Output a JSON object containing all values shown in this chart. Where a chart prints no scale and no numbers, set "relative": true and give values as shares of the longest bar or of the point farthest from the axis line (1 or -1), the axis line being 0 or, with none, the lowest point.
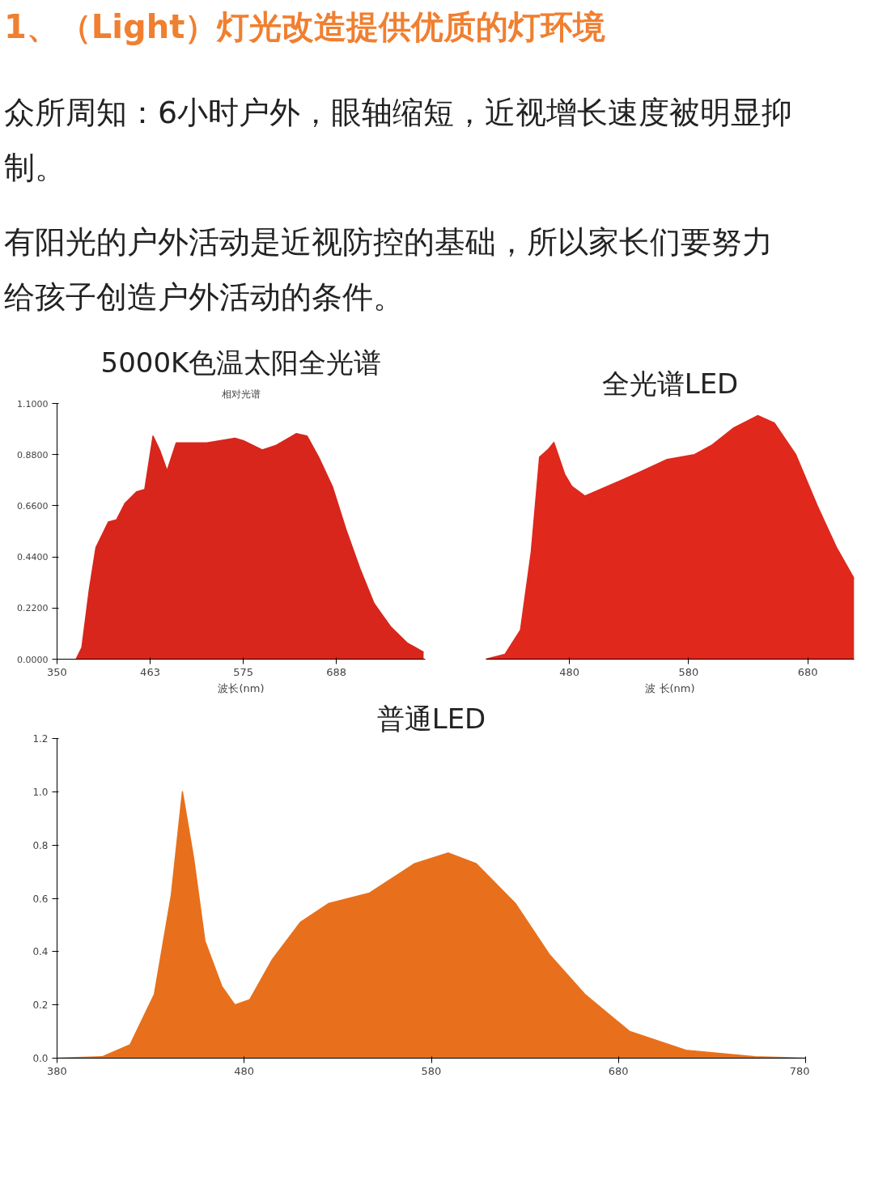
{
  "chart_data": [
    {
      "type": "area",
      "title": "5000K色温太阳全光谱",
      "subtitle": "相对光谱",
      "xlabel": "波长(nm)",
      "annotations": [
        "1、（Light）灯光改造提供优质的灯环境",
        "众所周知：6小时户外，眼轴缩短，近视增长速度被明显抑制。",
        "有阳光的户外活动是近视防控的基础，所以家长们要努力给孩子创造户外活动的条件。"
      ],
      "x": [
        373,
        380,
        389,
        397,
        412,
        422,
        432,
        446,
        456,
        466,
        474,
        483,
        494,
        504,
        531,
        565,
        575,
        598,
        615,
        639,
        652,
        666,
        683,
        699,
        716,
        733,
        753,
        773,
        793
      ],
      "series": [
        {
          "color": "#d8261c",
          "values": [
            0,
            0.05,
            0.3,
            0.48,
            0.59,
            0.6,
            0.67,
            0.72,
            0.73,
            0.96,
            0.9,
            0.81,
            0.93,
            0.93,
            0.93,
            0.95,
            0.94,
            0.9,
            0.92,
            0.97,
            0.96,
            0.87,
            0.74,
            0.56,
            0.39,
            0.24,
            0.14,
            0.07,
            0.03
          ]
        }
      ],
      "xlim": [
        350,
        795
      ],
      "xticks": [
        {
          "value": 350,
          "label": "350"
        },
        {
          "value": 462.5,
          "label": "463"
        },
        575,
        {
          "value": 687.5,
          "label": "688"
        }
      ],
      "ylim": [
        0,
        1.1
      ],
      "yticks": [
        {
          "value": 0,
          "label": "0.0000"
        },
        {
          "value": 0.22,
          "label": "0.2200"
        },
        {
          "value": 0.44,
          "label": "0.4400"
        },
        {
          "value": 0.66,
          "label": "0.6600"
        },
        {
          "value": 0.88,
          "label": "0.8800"
        },
        {
          "value": 1.1,
          "label": "1.1000"
        }
      ]
    },
    {
      "type": "area",
      "title": "全光谱LED",
      "xlabel": "波 长(nm)",
      "relative": true,
      "x": [
        410,
        426,
        439,
        448,
        455,
        462,
        467,
        476,
        482,
        493,
        517,
        540,
        562,
        585,
        600,
        618,
        638,
        652,
        670,
        688,
        704,
        719
      ],
      "series": [
        {
          "color": "#e0281c",
          "values": [
            0,
            0.02,
            0.12,
            0.44,
            0.83,
            0.86,
            0.89,
            0.76,
            0.71,
            0.67,
            0.72,
            0.77,
            0.82,
            0.84,
            0.88,
            0.95,
            1.0,
            0.97,
            0.84,
            0.63,
            0.46,
            0.33
          ]
        }
      ],
      "xlim": [
        410,
        719
      ],
      "xticks": [
        480,
        580,
        680
      ]
    },
    {
      "type": "area",
      "title": "普通LED",
      "x": [
        380,
        404,
        419,
        432,
        441,
        447,
        453,
        459,
        468,
        475,
        483,
        495,
        510,
        525,
        547,
        571,
        589,
        604,
        625,
        643,
        662,
        686,
        716,
        753,
        780
      ],
      "series": [
        {
          "color": "#e8701c",
          "values": [
            0.0,
            0.005,
            0.05,
            0.24,
            0.61,
            1.0,
            0.75,
            0.44,
            0.27,
            0.2,
            0.22,
            0.37,
            0.51,
            0.58,
            0.62,
            0.73,
            0.77,
            0.73,
            0.58,
            0.39,
            0.24,
            0.1,
            0.03,
            0.005,
            0.0
          ]
        }
      ],
      "xlim": [
        380,
        780
      ],
      "xticks": [
        380,
        480,
        580,
        680,
        780
      ],
      "ylim": [
        0,
        1.2
      ],
      "yticks": [
        {
          "value": 0,
          "label": "0.0"
        },
        {
          "value": 0.2,
          "label": "0.2"
        },
        {
          "value": 0.4,
          "label": "0.4"
        },
        {
          "value": 0.6,
          "label": "0.6"
        },
        {
          "value": 0.8,
          "label": "0.8"
        },
        {
          "value": 1.0,
          "label": "1.0"
        },
        {
          "value": 1.2,
          "label": "1.2"
        }
      ]
    }
  ]
}
